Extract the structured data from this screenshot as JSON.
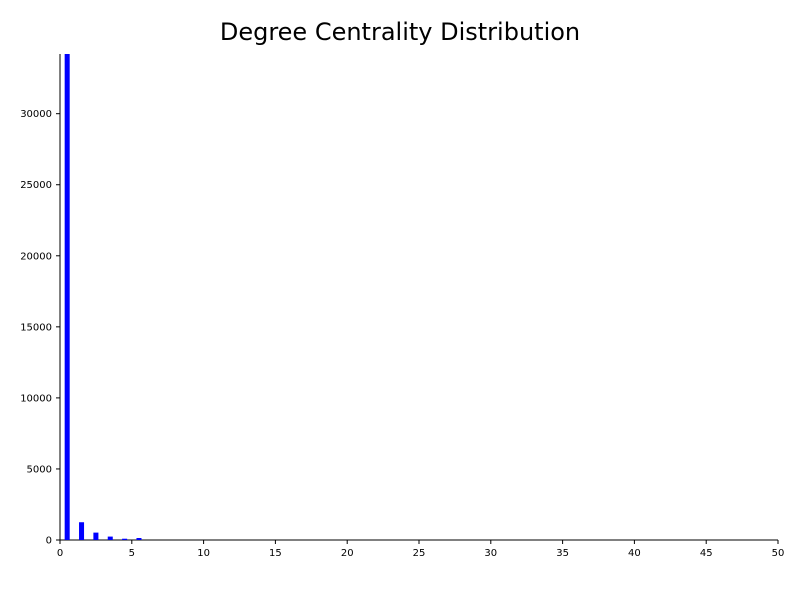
{
  "chart_data": {
    "type": "bar",
    "title": "Degree Centrality Distribution",
    "xlabel": "",
    "ylabel": "",
    "x": [
      0,
      1,
      2,
      3,
      4,
      5
    ],
    "values": [
      34200,
      1250,
      520,
      240,
      90,
      140
    ],
    "xlim": [
      0,
      50
    ],
    "ylim": [
      0,
      34200
    ],
    "x_ticks": [
      0,
      5,
      10,
      15,
      20,
      25,
      30,
      35,
      40,
      45,
      50
    ],
    "y_ticks": [
      0,
      5000,
      10000,
      15000,
      20000,
      25000,
      30000
    ],
    "bar_color": "#0000ff",
    "grid": false
  }
}
